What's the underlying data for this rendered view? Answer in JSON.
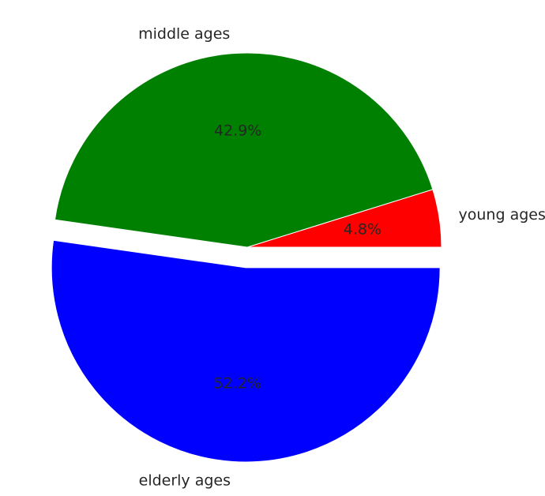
{
  "chart_data": {
    "type": "pie",
    "title": "",
    "slices": [
      {
        "label": "young ages",
        "value": 4.8,
        "pct_label": "4.8%",
        "color": "#ff0000",
        "explode": false
      },
      {
        "label": "middle ages",
        "value": 42.9,
        "pct_label": "42.9%",
        "color": "#008000",
        "explode": false
      },
      {
        "label": "elderly ages",
        "value": 52.2,
        "pct_label": "52.2%",
        "color": "#0000ff",
        "explode": true
      }
    ],
    "start_angle": 0,
    "direction": "counterclockwise"
  }
}
